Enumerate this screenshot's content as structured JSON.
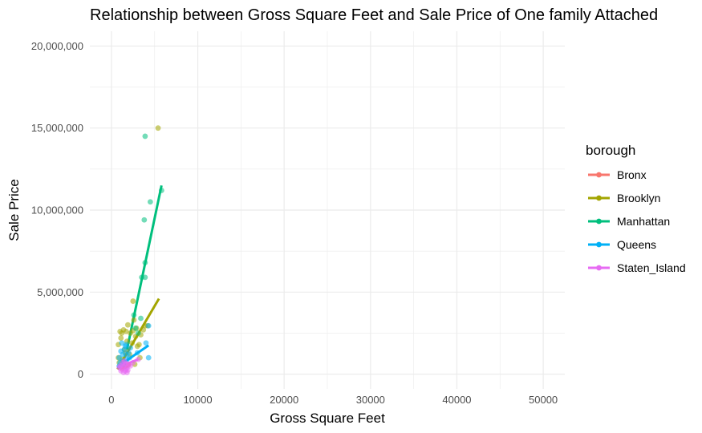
{
  "chart_data": {
    "type": "scatter",
    "title": "Relationship between Gross Square Feet and Sale Price of One family Attached",
    "xlabel": "Gross Square Feet",
    "ylabel": "Sale Price",
    "xlim": [
      -2500,
      52500
    ],
    "ylim": [
      -900000,
      20900000
    ],
    "x_ticks": [
      0,
      10000,
      20000,
      30000,
      40000,
      50000
    ],
    "x_tick_labels": [
      "0",
      "10000",
      "20000",
      "30000",
      "40000",
      "50000"
    ],
    "y_ticks": [
      0,
      5000000,
      10000000,
      15000000,
      20000000
    ],
    "y_tick_labels": [
      "0",
      "5,000,000",
      "10,000,000",
      "15,000,000",
      "20,000,000"
    ],
    "grid": true,
    "legend": {
      "title": "borough",
      "placement": "right"
    },
    "series": [
      {
        "name": "Bronx",
        "color": "#F8766D",
        "points": [
          [
            1200,
            350000
          ],
          [
            1400,
            420000
          ],
          [
            1600,
            480000
          ],
          [
            1800,
            520000
          ],
          [
            2000,
            560000
          ],
          [
            1500,
            450000
          ]
        ],
        "fit": [
          [
            1000,
            320000
          ],
          [
            2200,
            600000
          ]
        ]
      },
      {
        "name": "Brooklyn",
        "color": "#A3A500",
        "points": [
          [
            5400,
            15000000
          ],
          [
            2500,
            4450000
          ],
          [
            3900,
            2950000
          ],
          [
            4200,
            2950000
          ],
          [
            1000,
            2600000
          ],
          [
            1200,
            2500000
          ],
          [
            800,
            1800000
          ],
          [
            1100,
            2200000
          ],
          [
            1700,
            2600000
          ],
          [
            2200,
            2500000
          ],
          [
            2500,
            2650000
          ],
          [
            2800,
            2300000
          ],
          [
            3400,
            2400000
          ],
          [
            3000,
            1700000
          ],
          [
            1500,
            1500000
          ],
          [
            2600,
            3300000
          ],
          [
            3200,
            1800000
          ],
          [
            3700,
            2700000
          ],
          [
            2900,
            2800000
          ],
          [
            1900,
            3000000
          ],
          [
            2100,
            1200000
          ],
          [
            1300,
            900000
          ],
          [
            800,
            1000000
          ],
          [
            1600,
            1300000
          ],
          [
            2400,
            1900000
          ],
          [
            1800,
            2000000
          ],
          [
            3300,
            1000000
          ],
          [
            2700,
            600000
          ],
          [
            1400,
            2700000
          ],
          [
            900,
            700000
          ]
        ],
        "fit": [
          [
            700,
            300000
          ],
          [
            5500,
            4600000
          ]
        ]
      },
      {
        "name": "Manhattan",
        "color": "#00BF7D",
        "points": [
          [
            3900,
            14500000
          ],
          [
            5800,
            11200000
          ],
          [
            4500,
            10500000
          ],
          [
            3800,
            9400000
          ],
          [
            3900,
            6800000
          ],
          [
            3500,
            5900000
          ],
          [
            3900,
            5900000
          ],
          [
            3400,
            3400000
          ],
          [
            2600,
            3600000
          ],
          [
            3100,
            2500000
          ],
          [
            2800,
            2800000
          ]
        ],
        "fit": [
          [
            1800,
            1500000
          ],
          [
            5800,
            11500000
          ]
        ]
      },
      {
        "name": "Queens",
        "color": "#00B0F6",
        "points": [
          [
            4300,
            1000000
          ],
          [
            4300,
            2950000
          ],
          [
            4000,
            1900000
          ],
          [
            3000,
            1300000
          ],
          [
            1700,
            1200000
          ],
          [
            1500,
            1500000
          ],
          [
            1300,
            800000
          ],
          [
            1600,
            1700000
          ],
          [
            1200,
            1900000
          ],
          [
            1100,
            1400000
          ],
          [
            900,
            1000000
          ],
          [
            1400,
            600000
          ],
          [
            2000,
            1300000
          ],
          [
            1800,
            900000
          ],
          [
            2200,
            1600000
          ],
          [
            1000,
            700000
          ],
          [
            1700,
            1800000
          ],
          [
            2100,
            1000000
          ],
          [
            1300,
            1200000
          ],
          [
            900,
            500000
          ]
        ],
        "fit": [
          [
            700,
            450000
          ],
          [
            4300,
            1750000
          ]
        ]
      },
      {
        "name": "Staten_Island",
        "color": "#E76BF3",
        "points": [
          [
            1000,
            500000
          ],
          [
            1200,
            300000
          ],
          [
            1400,
            100000
          ],
          [
            1600,
            200000
          ],
          [
            1800,
            400000
          ],
          [
            2000,
            600000
          ],
          [
            1300,
            700000
          ],
          [
            1500,
            800000
          ],
          [
            1700,
            300000
          ],
          [
            1100,
            200000
          ],
          [
            900,
            400000
          ],
          [
            1800,
            100000
          ],
          [
            2200,
            500000
          ],
          [
            1600,
            600000
          ],
          [
            1400,
            450000
          ],
          [
            2500,
            700000
          ],
          [
            3100,
            900000
          ],
          [
            1200,
            550000
          ],
          [
            1900,
            250000
          ],
          [
            1700,
            650000
          ]
        ],
        "fit": [
          [
            700,
            400000
          ],
          [
            3100,
            900000
          ]
        ]
      }
    ]
  }
}
